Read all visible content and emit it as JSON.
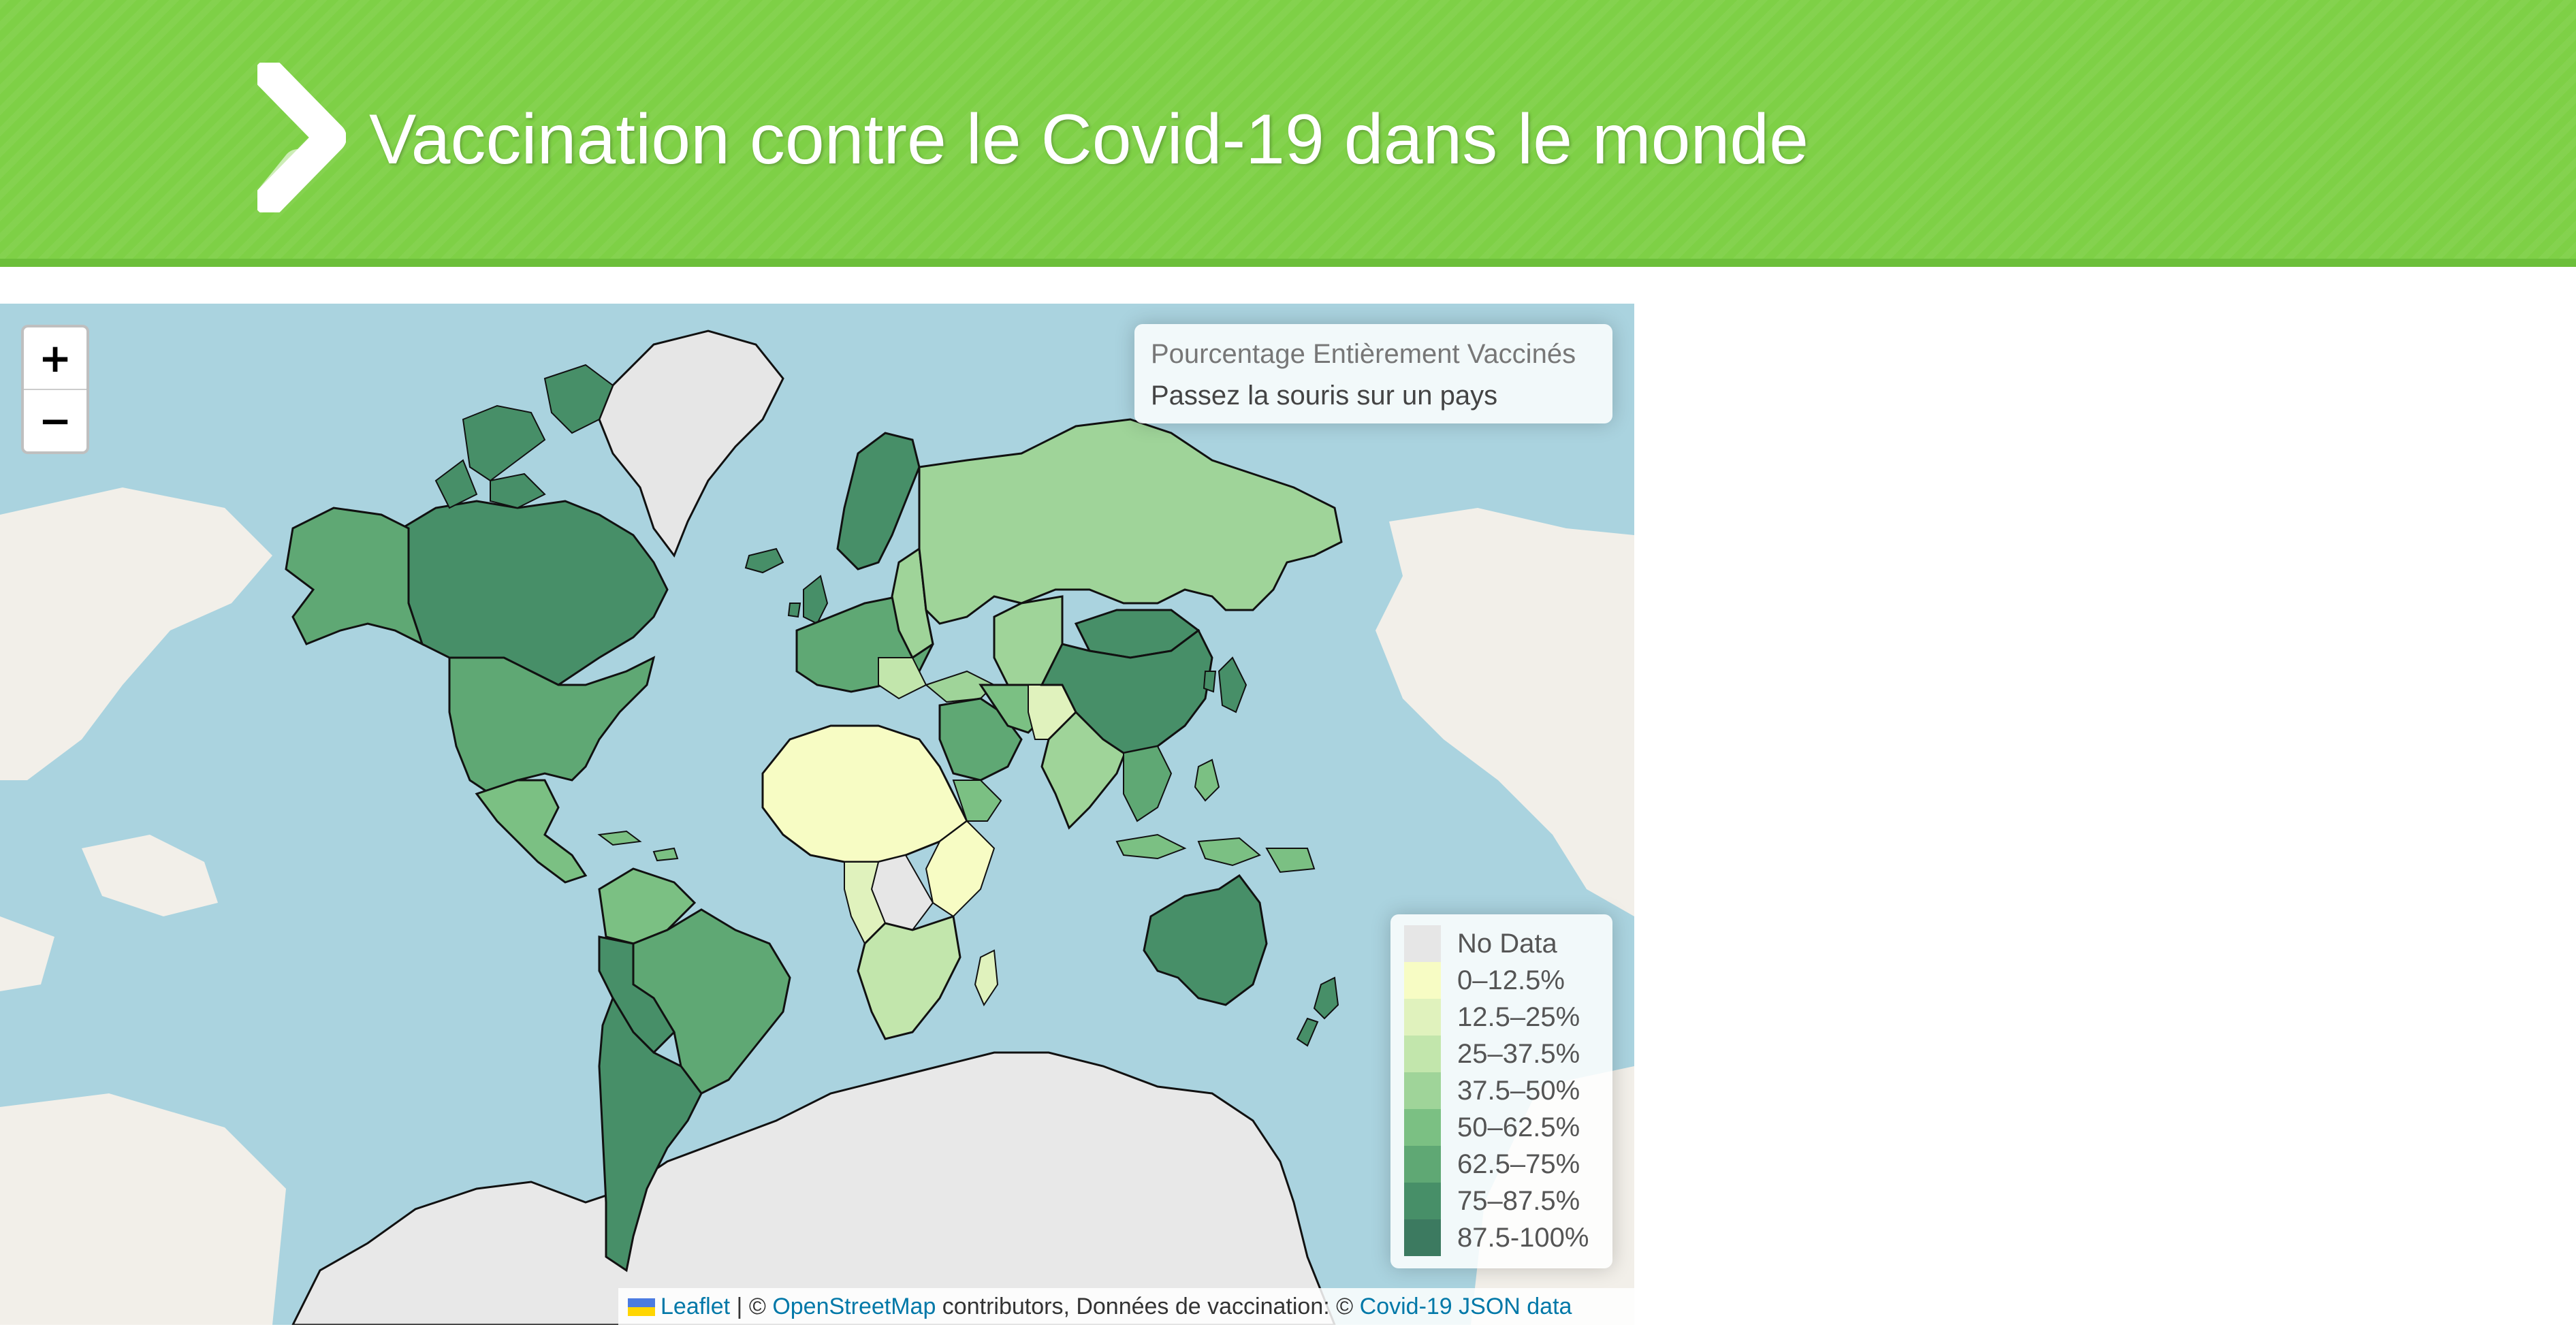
{
  "header": {
    "title": "Vaccination contre le Covid-19 dans le monde",
    "icon": "chevron-right-icon"
  },
  "map": {
    "zoom_in_label": "+",
    "zoom_out_label": "−",
    "info": {
      "title": "Pourcentage Entièrement Vaccinés",
      "hint": "Passez la souris sur un pays"
    },
    "legend": [
      {
        "label": "No Data",
        "color": "#e6e6e6"
      },
      {
        "label": "0–12.5%",
        "color": "#f7fcc4"
      },
      {
        "label": "12.5–25%",
        "color": "#e0f2bd"
      },
      {
        "label": "25–37.5%",
        "color": "#c2e6ac"
      },
      {
        "label": "37.5–50%",
        "color": "#9fd499"
      },
      {
        "label": "50–62.5%",
        "color": "#7bc083"
      },
      {
        "label": "62.5–75%",
        "color": "#5fa874"
      },
      {
        "label": "75–87.5%",
        "color": "#478f68"
      },
      {
        "label": "87.5-100%",
        "color": "#3c7a60"
      }
    ],
    "colors": {
      "ocean": "#aad3df",
      "land_tile": "#f2efe9",
      "ice": "#e8e8e8",
      "border": "#111111"
    },
    "attribution": {
      "leaflet": "Leaflet",
      "sep": " | © ",
      "osm": "OpenStreetMap",
      "contributors": " contributors, Données de vaccination: © ",
      "source": "Covid-19 JSON data"
    }
  }
}
